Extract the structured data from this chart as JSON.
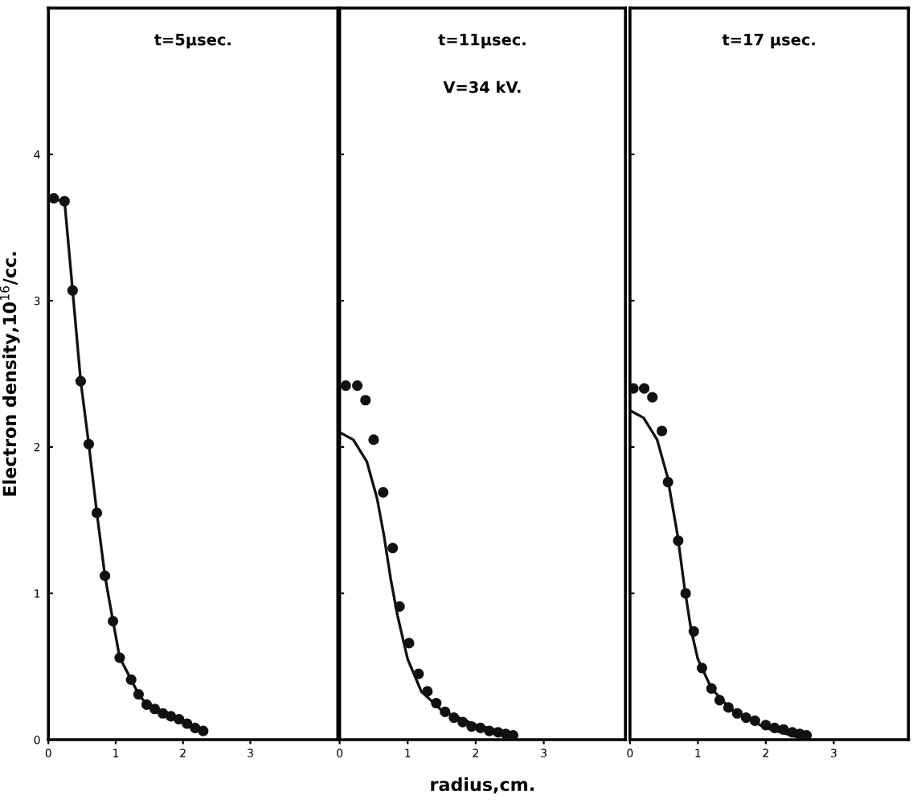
{
  "chart_data": [
    {
      "type": "scatter",
      "ylabel": "Electron density,10$^{16}$/cc.",
      "annotations": [
        "t=5μsec."
      ],
      "xlim": [
        0,
        4.3
      ],
      "ylim": [
        0,
        5
      ],
      "xticks": [
        0,
        1,
        2,
        3
      ],
      "yticks": [
        0,
        1,
        2,
        3,
        4
      ],
      "grid": false,
      "legend": false,
      "series": [
        {
          "color": "#111111",
          "marker": "circle",
          "x": [
            0.08,
            0.24,
            0.36,
            0.48,
            0.6,
            0.72,
            0.84,
            0.96,
            1.06,
            1.23,
            1.34,
            1.46,
            1.58,
            1.7,
            1.82,
            1.94,
            2.06,
            2.18,
            2.3
          ],
          "values": [
            3.7,
            3.68,
            3.07,
            2.45,
            2.02,
            1.55,
            1.12,
            0.81,
            0.56,
            0.41,
            0.31,
            0.24,
            0.21,
            0.18,
            0.16,
            0.14,
            0.11,
            0.08,
            0.06
          ]
        },
        {
          "type": "line",
          "color": "#111111",
          "marker": "none",
          "line_style": "solid",
          "x": [
            0,
            0.24,
            0.36,
            0.48,
            0.6,
            0.72,
            0.84,
            0.96,
            1.06,
            1.23,
            1.34,
            1.46,
            1.7,
            1.94,
            2.3
          ],
          "values": [
            3.7,
            3.68,
            3.07,
            2.45,
            2.02,
            1.55,
            1.12,
            0.81,
            0.56,
            0.41,
            0.31,
            0.24,
            0.18,
            0.14,
            0.06
          ]
        }
      ]
    },
    {
      "type": "scatter",
      "xlabel": "radius,cm.",
      "annotations": [
        "t=11μsec.",
        "V=34 kV."
      ],
      "xlim": [
        0,
        4.2
      ],
      "ylim": [
        0,
        5
      ],
      "xticks": [
        0,
        1,
        2,
        3
      ],
      "yticks": [
        {
          "value": 1,
          "label": null
        },
        {
          "value": 2,
          "label": null
        },
        {
          "value": 3,
          "label": null
        },
        {
          "value": 4,
          "label": null
        }
      ],
      "tick_labels": "x",
      "grid": false,
      "legend": false,
      "series": [
        {
          "color": "#111111",
          "marker": "circle",
          "x": [
            0.09,
            0.26,
            0.38,
            0.5,
            0.64,
            0.78,
            0.88,
            1.02,
            1.16,
            1.29,
            1.42,
            1.55,
            1.68,
            1.81,
            1.94,
            2.07,
            2.2,
            2.33,
            2.44,
            2.55
          ],
          "values": [
            2.42,
            2.42,
            2.32,
            2.05,
            1.69,
            1.31,
            0.91,
            0.66,
            0.45,
            0.33,
            0.25,
            0.19,
            0.15,
            0.12,
            0.09,
            0.08,
            0.06,
            0.05,
            0.04,
            0.03
          ]
        },
        {
          "type": "line",
          "color": "#111111",
          "marker": "none",
          "line_style": "solid",
          "x": [
            0,
            0.2,
            0.4,
            0.55,
            0.65,
            0.75,
            0.85,
            1.0,
            1.2,
            1.5,
            2.0,
            2.55
          ],
          "values": [
            2.1,
            2.05,
            1.9,
            1.65,
            1.4,
            1.1,
            0.85,
            0.55,
            0.33,
            0.2,
            0.1,
            0.04
          ]
        }
      ]
    },
    {
      "type": "scatter",
      "annotations": [
        "t=17 μsec."
      ],
      "xlim": [
        0,
        4.1
      ],
      "ylim": [
        0,
        5
      ],
      "xticks": [
        0,
        1,
        2,
        3
      ],
      "yticks": [
        {
          "value": 1,
          "label": null
        },
        {
          "value": 2,
          "label": null
        },
        {
          "value": 3,
          "label": null
        },
        {
          "value": 4,
          "label": null
        }
      ],
      "tick_labels": "x",
      "grid": false,
      "legend": false,
      "series": [
        {
          "color": "#111111",
          "marker": "circle",
          "x": [
            0.05,
            0.21,
            0.33,
            0.47,
            0.56,
            0.71,
            0.82,
            0.94,
            1.06,
            1.2,
            1.32,
            1.45,
            1.58,
            1.71,
            1.84,
            2.0,
            2.13,
            2.26,
            2.39,
            2.5,
            2.6
          ],
          "values": [
            2.4,
            2.4,
            2.34,
            2.11,
            1.76,
            1.36,
            1.0,
            0.74,
            0.49,
            0.35,
            0.27,
            0.22,
            0.18,
            0.15,
            0.13,
            0.1,
            0.08,
            0.07,
            0.05,
            0.04,
            0.03
          ]
        },
        {
          "type": "line",
          "color": "#111111",
          "marker": "none",
          "line_style": "solid",
          "x": [
            0,
            0.2,
            0.4,
            0.55,
            0.7,
            0.8,
            0.9,
            1.0,
            1.2,
            1.5,
            2.0,
            2.6
          ],
          "values": [
            2.25,
            2.2,
            2.05,
            1.8,
            1.4,
            1.05,
            0.75,
            0.55,
            0.35,
            0.2,
            0.08,
            0.0
          ]
        }
      ]
    }
  ]
}
